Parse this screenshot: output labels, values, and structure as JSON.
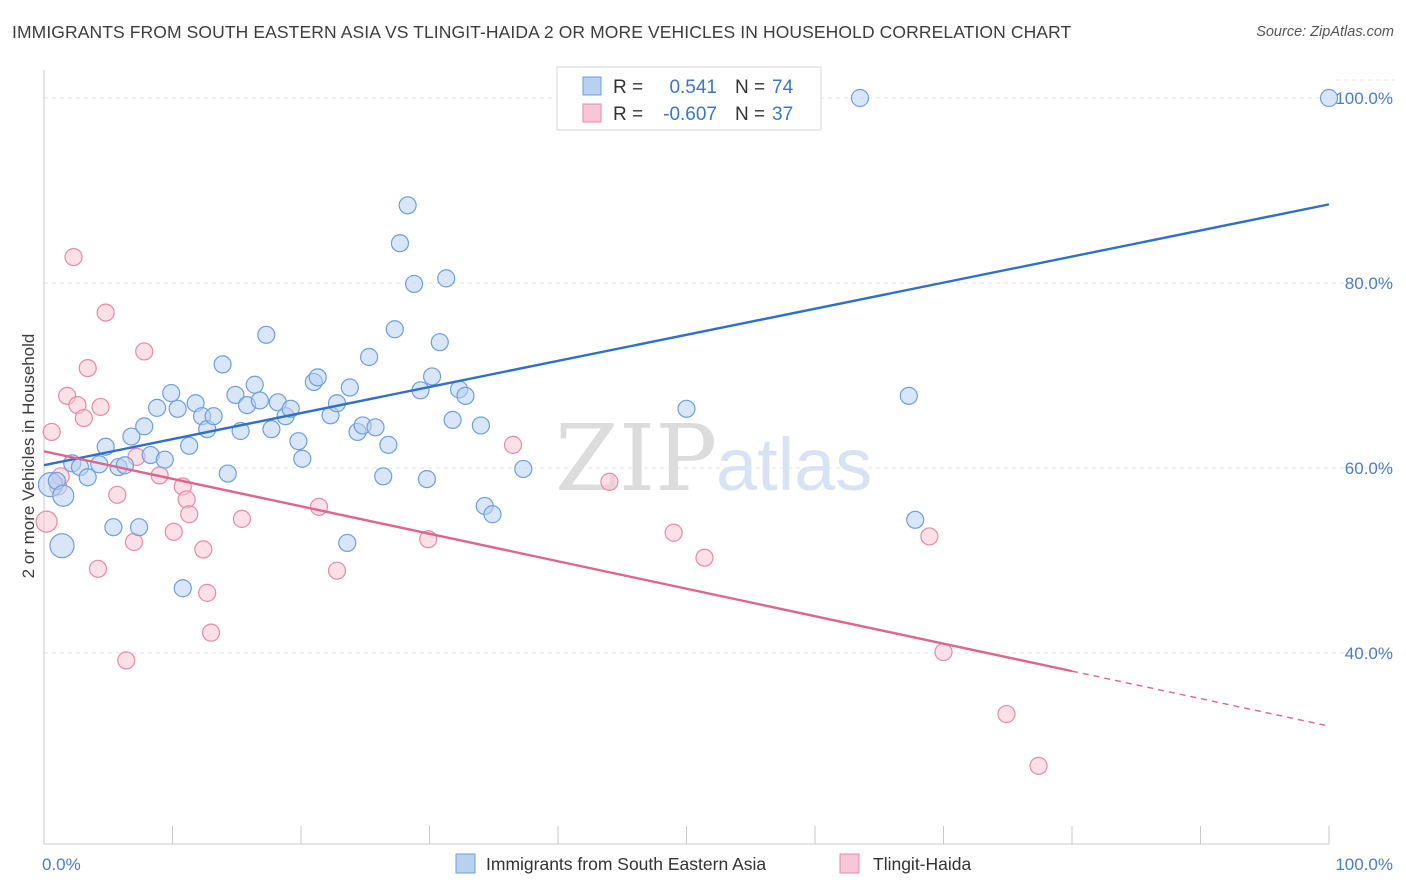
{
  "title": "IMMIGRANTS FROM SOUTH EASTERN ASIA VS TLINGIT-HAIDA 2 OR MORE VEHICLES IN HOUSEHOLD CORRELATION CHART",
  "source": "Source: ZipAtlas.com",
  "watermark": {
    "zip": "ZIP",
    "atlas": "atlas"
  },
  "colors": {
    "blue_fill": "#b8d1f0",
    "blue_stroke": "#6d9fdc",
    "blue_line": "#2f6fd0",
    "pink_fill": "#f8c6d6",
    "pink_stroke": "#e889a8",
    "pink_line": "#e0648e",
    "grid": "#e2e2e2",
    "tick_text": "#4a7cc7"
  },
  "legend_top": {
    "rows": [
      {
        "r_label": "R =",
        "r_value": "0.541",
        "n_label": "N =",
        "n_value": "74"
      },
      {
        "r_label": "R =",
        "r_value": "-0.607",
        "n_label": "N =",
        "n_value": "37"
      }
    ]
  },
  "chart_data": {
    "type": "scatter",
    "title": "IMMIGRANTS FROM SOUTH EASTERN ASIA VS TLINGIT-HAIDA 2 OR MORE VEHICLES IN HOUSEHOLD CORRELATION CHART",
    "ylabel": "2 or more Vehicles in Household",
    "xlim": [
      0,
      100
    ],
    "ylim": [
      20,
      102
    ],
    "x_tick_labels": [
      "0.0%",
      "100.0%"
    ],
    "y_ticks": [
      40,
      60,
      80,
      100
    ],
    "y_tick_labels": [
      "40.0%",
      "60.0%",
      "80.0%",
      "100.0%"
    ],
    "grid": true,
    "legend_placement": "top-center",
    "series": [
      {
        "name": "Immigrants from South Eastern Asia",
        "trend": {
          "x": [
            0,
            100
          ],
          "y": [
            60.3,
            88.5
          ],
          "dashed_from": null
        },
        "points": [
          {
            "x": 0.5,
            "y": 58.2,
            "s": "l"
          },
          {
            "x": 1.0,
            "y": 58.6
          },
          {
            "x": 1.5,
            "y": 57.0,
            "s": "m"
          },
          {
            "x": 1.4,
            "y": 51.6,
            "s": "l"
          },
          {
            "x": 2.2,
            "y": 60.5
          },
          {
            "x": 2.8,
            "y": 60.1
          },
          {
            "x": 3.4,
            "y": 59.0
          },
          {
            "x": 4.3,
            "y": 60.4
          },
          {
            "x": 4.8,
            "y": 62.3
          },
          {
            "x": 5.4,
            "y": 53.6
          },
          {
            "x": 5.8,
            "y": 60.1
          },
          {
            "x": 6.3,
            "y": 60.3
          },
          {
            "x": 6.8,
            "y": 63.4
          },
          {
            "x": 7.4,
            "y": 53.6
          },
          {
            "x": 7.8,
            "y": 64.5
          },
          {
            "x": 8.3,
            "y": 61.4
          },
          {
            "x": 8.8,
            "y": 66.5
          },
          {
            "x": 9.4,
            "y": 60.9
          },
          {
            "x": 9.9,
            "y": 68.1
          },
          {
            "x": 10.4,
            "y": 66.4
          },
          {
            "x": 10.8,
            "y": 47.0
          },
          {
            "x": 11.3,
            "y": 62.4
          },
          {
            "x": 11.8,
            "y": 67.0
          },
          {
            "x": 12.3,
            "y": 65.6
          },
          {
            "x": 12.7,
            "y": 64.2
          },
          {
            "x": 13.2,
            "y": 65.6
          },
          {
            "x": 13.9,
            "y": 71.2
          },
          {
            "x": 14.3,
            "y": 59.4
          },
          {
            "x": 14.9,
            "y": 67.9
          },
          {
            "x": 15.3,
            "y": 64.0
          },
          {
            "x": 15.8,
            "y": 66.8
          },
          {
            "x": 16.4,
            "y": 69.0
          },
          {
            "x": 16.8,
            "y": 67.3
          },
          {
            "x": 17.3,
            "y": 74.4
          },
          {
            "x": 17.7,
            "y": 64.2
          },
          {
            "x": 18.2,
            "y": 67.1
          },
          {
            "x": 18.8,
            "y": 65.6
          },
          {
            "x": 19.2,
            "y": 66.4
          },
          {
            "x": 19.8,
            "y": 62.9
          },
          {
            "x": 20.1,
            "y": 61.0
          },
          {
            "x": 21.0,
            "y": 69.3
          },
          {
            "x": 21.3,
            "y": 69.8
          },
          {
            "x": 22.3,
            "y": 65.7
          },
          {
            "x": 22.8,
            "y": 67.0
          },
          {
            "x": 23.6,
            "y": 51.9
          },
          {
            "x": 23.8,
            "y": 68.7
          },
          {
            "x": 24.4,
            "y": 63.9
          },
          {
            "x": 24.8,
            "y": 64.6
          },
          {
            "x": 25.3,
            "y": 72.0
          },
          {
            "x": 25.8,
            "y": 64.4
          },
          {
            "x": 26.4,
            "y": 59.1
          },
          {
            "x": 26.8,
            "y": 62.5
          },
          {
            "x": 27.3,
            "y": 75.0
          },
          {
            "x": 27.7,
            "y": 84.3
          },
          {
            "x": 28.3,
            "y": 88.4
          },
          {
            "x": 28.8,
            "y": 79.9
          },
          {
            "x": 29.3,
            "y": 68.4
          },
          {
            "x": 29.8,
            "y": 58.8
          },
          {
            "x": 30.2,
            "y": 69.9
          },
          {
            "x": 30.8,
            "y": 73.6
          },
          {
            "x": 31.3,
            "y": 80.5
          },
          {
            "x": 31.8,
            "y": 65.2
          },
          {
            "x": 32.3,
            "y": 68.5
          },
          {
            "x": 32.8,
            "y": 67.8
          },
          {
            "x": 34.0,
            "y": 64.6
          },
          {
            "x": 34.3,
            "y": 55.9
          },
          {
            "x": 34.9,
            "y": 55.0
          },
          {
            "x": 37.3,
            "y": 59.9
          },
          {
            "x": 50.0,
            "y": 66.4
          },
          {
            "x": 63.5,
            "y": 100.0
          },
          {
            "x": 67.3,
            "y": 67.8
          },
          {
            "x": 67.8,
            "y": 54.4
          },
          {
            "x": 100.0,
            "y": 100.0
          }
        ]
      },
      {
        "name": "Tlingit-Haida",
        "trend": {
          "x": [
            0,
            100
          ],
          "y": [
            61.8,
            32.1
          ],
          "dashed_from": 80
        },
        "points": [
          {
            "x": 0.2,
            "y": 54.2,
            "s": "m"
          },
          {
            "x": 0.6,
            "y": 63.9
          },
          {
            "x": 1.1,
            "y": 58.0
          },
          {
            "x": 1.3,
            "y": 59.1
          },
          {
            "x": 1.8,
            "y": 67.8
          },
          {
            "x": 2.3,
            "y": 82.8
          },
          {
            "x": 2.6,
            "y": 66.8
          },
          {
            "x": 3.1,
            "y": 65.4
          },
          {
            "x": 3.4,
            "y": 70.8
          },
          {
            "x": 4.2,
            "y": 49.1
          },
          {
            "x": 4.4,
            "y": 66.6
          },
          {
            "x": 4.8,
            "y": 76.8
          },
          {
            "x": 5.7,
            "y": 57.1
          },
          {
            "x": 6.4,
            "y": 39.2
          },
          {
            "x": 7.0,
            "y": 52.0
          },
          {
            "x": 7.2,
            "y": 61.2
          },
          {
            "x": 7.8,
            "y": 72.6
          },
          {
            "x": 9.0,
            "y": 59.2
          },
          {
            "x": 10.1,
            "y": 53.1
          },
          {
            "x": 10.8,
            "y": 58.0
          },
          {
            "x": 11.1,
            "y": 56.6
          },
          {
            "x": 11.3,
            "y": 55.0
          },
          {
            "x": 12.4,
            "y": 51.2
          },
          {
            "x": 12.7,
            "y": 46.5
          },
          {
            "x": 13.0,
            "y": 42.2
          },
          {
            "x": 15.4,
            "y": 54.5
          },
          {
            "x": 21.4,
            "y": 55.8
          },
          {
            "x": 22.8,
            "y": 48.9
          },
          {
            "x": 29.9,
            "y": 52.3
          },
          {
            "x": 36.5,
            "y": 62.5
          },
          {
            "x": 44.0,
            "y": 58.5
          },
          {
            "x": 49.0,
            "y": 53.0
          },
          {
            "x": 51.4,
            "y": 50.3
          },
          {
            "x": 68.9,
            "y": 52.6
          },
          {
            "x": 70.0,
            "y": 40.1
          },
          {
            "x": 74.9,
            "y": 33.4
          },
          {
            "x": 77.4,
            "y": 27.8
          }
        ]
      }
    ]
  }
}
